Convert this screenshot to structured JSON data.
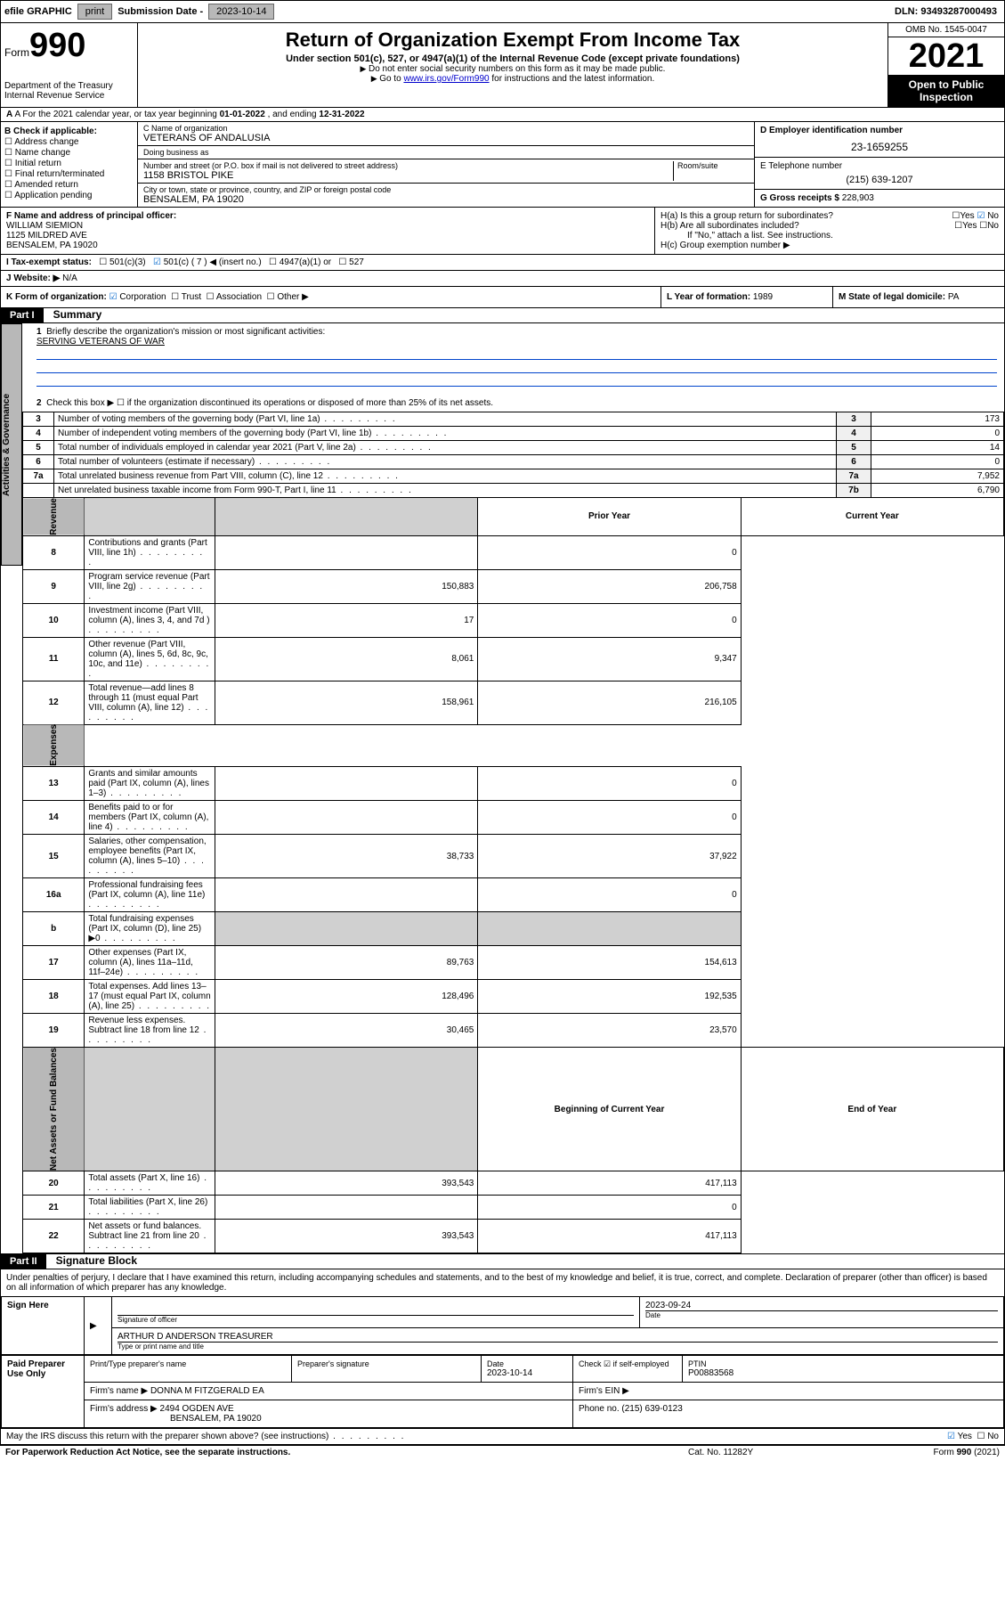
{
  "topbar": {
    "efile": "efile GRAPHIC",
    "print": "print",
    "sub_label": "Submission Date -",
    "sub_date": "2023-10-14",
    "dln_label": "DLN:",
    "dln": "93493287000493"
  },
  "header": {
    "form_word": "Form",
    "form_num": "990",
    "title": "Return of Organization Exempt From Income Tax",
    "subtitle": "Under section 501(c), 527, or 4947(a)(1) of the Internal Revenue Code (except private foundations)",
    "note1": "Do not enter social security numbers on this form as it may be made public.",
    "note2_pre": "Go to ",
    "note2_link": "www.irs.gov/Form990",
    "note2_post": " for instructions and the latest information.",
    "dept": "Department of the Treasury\nInternal Revenue Service",
    "omb": "OMB No. 1545-0047",
    "year": "2021",
    "open": "Open to Public Inspection"
  },
  "section_a": {
    "text_pre": "A For the 2021 calendar year, or tax year beginning ",
    "begin": "01-01-2022",
    "mid": " , and ending ",
    "end": "12-31-2022"
  },
  "col_b": {
    "header": "B Check if applicable:",
    "items": [
      "Address change",
      "Name change",
      "Initial return",
      "Final return/terminated",
      "Amended return",
      "Application pending"
    ]
  },
  "col_c": {
    "name_label": "C Name of organization",
    "name": "VETERANS OF ANDALUSIA",
    "dba_label": "Doing business as",
    "dba": "",
    "addr_label": "Number and street (or P.O. box if mail is not delivered to street address)",
    "room_label": "Room/suite",
    "addr": "1158 BRISTOL PIKE",
    "city_label": "City or town, state or province, country, and ZIP or foreign postal code",
    "city": "BENSALEM, PA  19020"
  },
  "col_d": {
    "ein_label": "D Employer identification number",
    "ein": "23-1659255",
    "phone_label": "E Telephone number",
    "phone": "(215) 639-1207",
    "gross_label": "G Gross receipts $",
    "gross": "228,903"
  },
  "row_f": {
    "label": "F Name and address of principal officer:",
    "name": "WILLIAM SIEMION",
    "addr1": "1125 MILDRED AVE",
    "addr2": "BENSALEM, PA  19020"
  },
  "row_h": {
    "ha": "H(a)  Is this a group return for subordinates?",
    "hb": "H(b)  Are all subordinates included?",
    "hb_note": "If \"No,\" attach a list. See instructions.",
    "hc": "H(c)  Group exemption number ▶",
    "yes": "Yes",
    "no": "No"
  },
  "row_i": {
    "label": "I   Tax-exempt status:",
    "opt1": "501(c)(3)",
    "opt2": "501(c) ( 7 ) ◀ (insert no.)",
    "opt3": "4947(a)(1) or",
    "opt4": "527"
  },
  "row_j": {
    "label": "J   Website: ▶",
    "val": "N/A"
  },
  "row_k": {
    "label": "K Form of organization:",
    "opts": [
      "Corporation",
      "Trust",
      "Association",
      "Other ▶"
    ]
  },
  "row_l": {
    "label": "L Year of formation:",
    "val": "1989"
  },
  "row_m": {
    "label": "M State of legal domicile:",
    "val": "PA"
  },
  "part1": {
    "header": "Part I",
    "title": "Summary",
    "line1": "Briefly describe the organization's mission or most significant activities:",
    "mission": "SERVING VETERANS OF WAR",
    "line2": "Check this box ▶ ☐  if the organization discontinued its operations or disposed of more than 25% of its net assets.",
    "vtab_ag": "Activities & Governance",
    "vtab_rev": "Revenue",
    "vtab_exp": "Expenses",
    "vtab_net": "Net Assets or Fund Balances",
    "rows_ag": [
      {
        "n": "3",
        "d": "Number of voting members of the governing body (Part VI, line 1a)",
        "r": "3",
        "v": "173"
      },
      {
        "n": "4",
        "d": "Number of independent voting members of the governing body (Part VI, line 1b)",
        "r": "4",
        "v": "0"
      },
      {
        "n": "5",
        "d": "Total number of individuals employed in calendar year 2021 (Part V, line 2a)",
        "r": "5",
        "v": "14"
      },
      {
        "n": "6",
        "d": "Total number of volunteers (estimate if necessary)",
        "r": "6",
        "v": "0"
      },
      {
        "n": "7a",
        "d": "Total unrelated business revenue from Part VIII, column (C), line 12",
        "r": "7a",
        "v": "7,952"
      },
      {
        "n": "",
        "d": "Net unrelated business taxable income from Form 990-T, Part I, line 11",
        "r": "7b",
        "v": "6,790"
      }
    ],
    "prior_hdr": "Prior Year",
    "curr_hdr": "Current Year",
    "rows_rev": [
      {
        "n": "8",
        "d": "Contributions and grants (Part VIII, line 1h)",
        "p": "",
        "c": "0"
      },
      {
        "n": "9",
        "d": "Program service revenue (Part VIII, line 2g)",
        "p": "150,883",
        "c": "206,758"
      },
      {
        "n": "10",
        "d": "Investment income (Part VIII, column (A), lines 3, 4, and 7d )",
        "p": "17",
        "c": "0"
      },
      {
        "n": "11",
        "d": "Other revenue (Part VIII, column (A), lines 5, 6d, 8c, 9c, 10c, and 11e)",
        "p": "8,061",
        "c": "9,347"
      },
      {
        "n": "12",
        "d": "Total revenue—add lines 8 through 11 (must equal Part VIII, column (A), line 12)",
        "p": "158,961",
        "c": "216,105"
      }
    ],
    "rows_exp": [
      {
        "n": "13",
        "d": "Grants and similar amounts paid (Part IX, column (A), lines 1–3)",
        "p": "",
        "c": "0"
      },
      {
        "n": "14",
        "d": "Benefits paid to or for members (Part IX, column (A), line 4)",
        "p": "",
        "c": "0"
      },
      {
        "n": "15",
        "d": "Salaries, other compensation, employee benefits (Part IX, column (A), lines 5–10)",
        "p": "38,733",
        "c": "37,922"
      },
      {
        "n": "16a",
        "d": "Professional fundraising fees (Part IX, column (A), line 11e)",
        "p": "",
        "c": "0"
      },
      {
        "n": "b",
        "d": "Total fundraising expenses (Part IX, column (D), line 25) ▶0",
        "p": "shade",
        "c": "shade"
      },
      {
        "n": "17",
        "d": "Other expenses (Part IX, column (A), lines 11a–11d, 11f–24e)",
        "p": "89,763",
        "c": "154,613"
      },
      {
        "n": "18",
        "d": "Total expenses. Add lines 13–17 (must equal Part IX, column (A), line 25)",
        "p": "128,496",
        "c": "192,535"
      },
      {
        "n": "19",
        "d": "Revenue less expenses. Subtract line 18 from line 12",
        "p": "30,465",
        "c": "23,570"
      }
    ],
    "boy_hdr": "Beginning of Current Year",
    "eoy_hdr": "End of Year",
    "rows_net": [
      {
        "n": "20",
        "d": "Total assets (Part X, line 16)",
        "p": "393,543",
        "c": "417,113"
      },
      {
        "n": "21",
        "d": "Total liabilities (Part X, line 26)",
        "p": "",
        "c": "0"
      },
      {
        "n": "22",
        "d": "Net assets or fund balances. Subtract line 21 from line 20",
        "p": "393,543",
        "c": "417,113"
      }
    ]
  },
  "part2": {
    "header": "Part II",
    "title": "Signature Block",
    "declare": "Under penalties of perjury, I declare that I have examined this return, including accompanying schedules and statements, and to the best of my knowledge and belief, it is true, correct, and complete. Declaration of preparer (other than officer) is based on all information of which preparer has any knowledge.",
    "sign_here": "Sign Here",
    "sig_officer": "Signature of officer",
    "date_label": "Date",
    "sig_date": "2023-09-24",
    "officer_name": "ARTHUR D ANDERSON  TREASURER",
    "name_title_label": "Type or print name and title",
    "paid": "Paid Preparer Use Only",
    "prep_name_label": "Print/Type preparer's name",
    "prep_sig_label": "Preparer's signature",
    "prep_date_label": "Date",
    "prep_date": "2023-10-14",
    "check_if": "Check ☑ if self-employed",
    "ptin_label": "PTIN",
    "ptin": "P00883568",
    "firm_name_label": "Firm's name    ▶",
    "firm_name": "DONNA M FITZGERALD EA",
    "firm_ein_label": "Firm's EIN ▶",
    "firm_addr_label": "Firm's address ▶",
    "firm_addr1": "2494 OGDEN AVE",
    "firm_addr2": "BENSALEM, PA  19020",
    "firm_phone_label": "Phone no.",
    "firm_phone": "(215) 639-0123",
    "may_irs": "May the IRS discuss this return with the preparer shown above? (see instructions)"
  },
  "footer": {
    "left": "For Paperwork Reduction Act Notice, see the separate instructions.",
    "mid": "Cat. No. 11282Y",
    "right": "Form 990 (2021)"
  }
}
